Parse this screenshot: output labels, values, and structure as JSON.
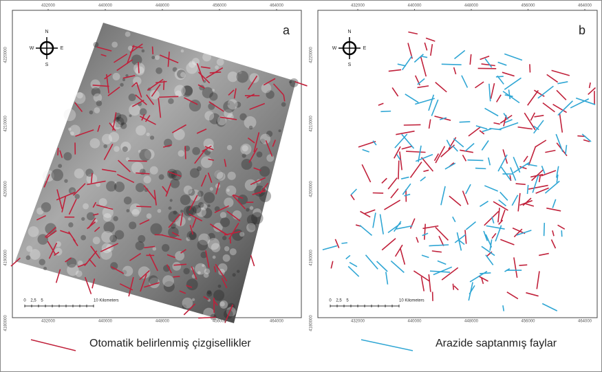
{
  "panels": [
    {
      "label": "a",
      "x_ticks": [
        "432000",
        "440000",
        "448000",
        "456000",
        "464000"
      ],
      "y_ticks": [
        "4220000",
        "4210000",
        "4200000",
        "4190000",
        "4180000"
      ],
      "compass": {
        "north": "N",
        "south": "S",
        "east": "E",
        "west": "W"
      },
      "scale": [
        "0",
        "2,5",
        "5",
        "10 Kilometers"
      ]
    },
    {
      "label": "b",
      "x_ticks": [
        "432000",
        "440000",
        "448000",
        "456000",
        "464000"
      ],
      "y_ticks": [
        "4220000",
        "4210000",
        "4200000",
        "4190000",
        "4180000"
      ],
      "compass": {
        "north": "N",
        "south": "S",
        "east": "E",
        "west": "W"
      },
      "scale": [
        "0",
        "2,5",
        "5",
        "10 Kilometers"
      ]
    }
  ],
  "legend": [
    {
      "text": "Otomatik belirlenmiş çizgisellikler",
      "color": "#c0203a"
    },
    {
      "text": "Arazide saptanmış faylar",
      "color": "#2fa6d4"
    }
  ]
}
